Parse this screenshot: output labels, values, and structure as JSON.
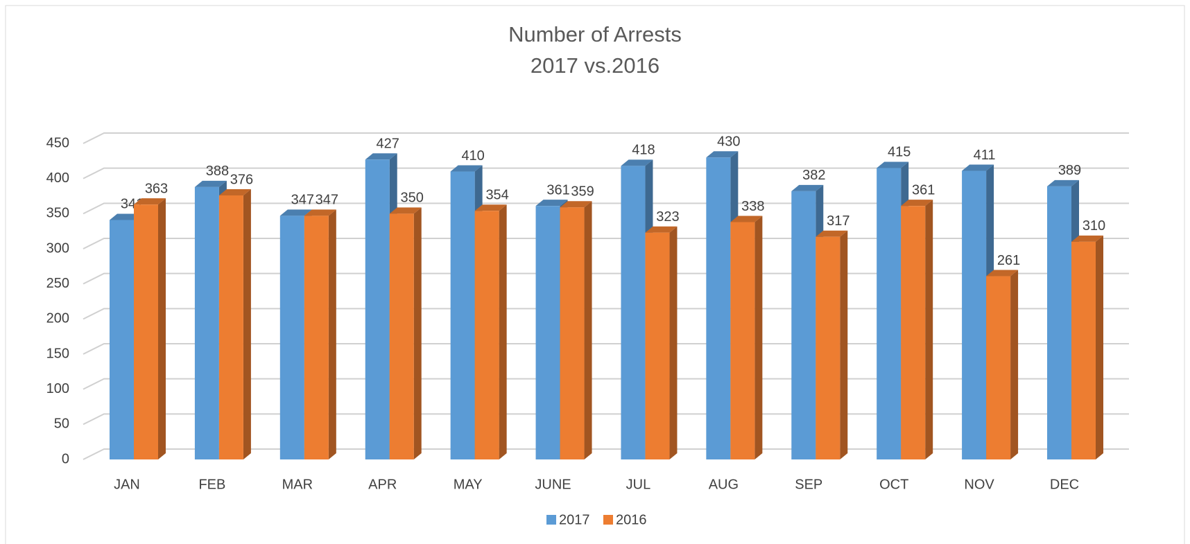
{
  "chart_data": {
    "type": "bar3d",
    "title": "Number of Arrests",
    "subtitle": "2017 vs.2016",
    "categories": [
      "JAN",
      "FEB",
      "MAR",
      "APR",
      "MAY",
      "JUNE",
      "JUL",
      "AUG",
      "SEP",
      "OCT",
      "NOV",
      "DEC"
    ],
    "series": [
      {
        "name": "2017",
        "color": "#5b9bd5",
        "values": [
          341,
          388,
          347,
          427,
          410,
          361,
          418,
          430,
          382,
          415,
          411,
          389
        ]
      },
      {
        "name": "2016",
        "color": "#ed7d31",
        "values": [
          363,
          376,
          347,
          350,
          354,
          359,
          323,
          338,
          317,
          361,
          261,
          310
        ]
      }
    ],
    "ylim": [
      0,
      450
    ],
    "yticks": [
      0,
      50,
      100,
      150,
      200,
      250,
      300,
      350,
      400,
      450
    ],
    "grid": true,
    "legend": "bottom"
  }
}
